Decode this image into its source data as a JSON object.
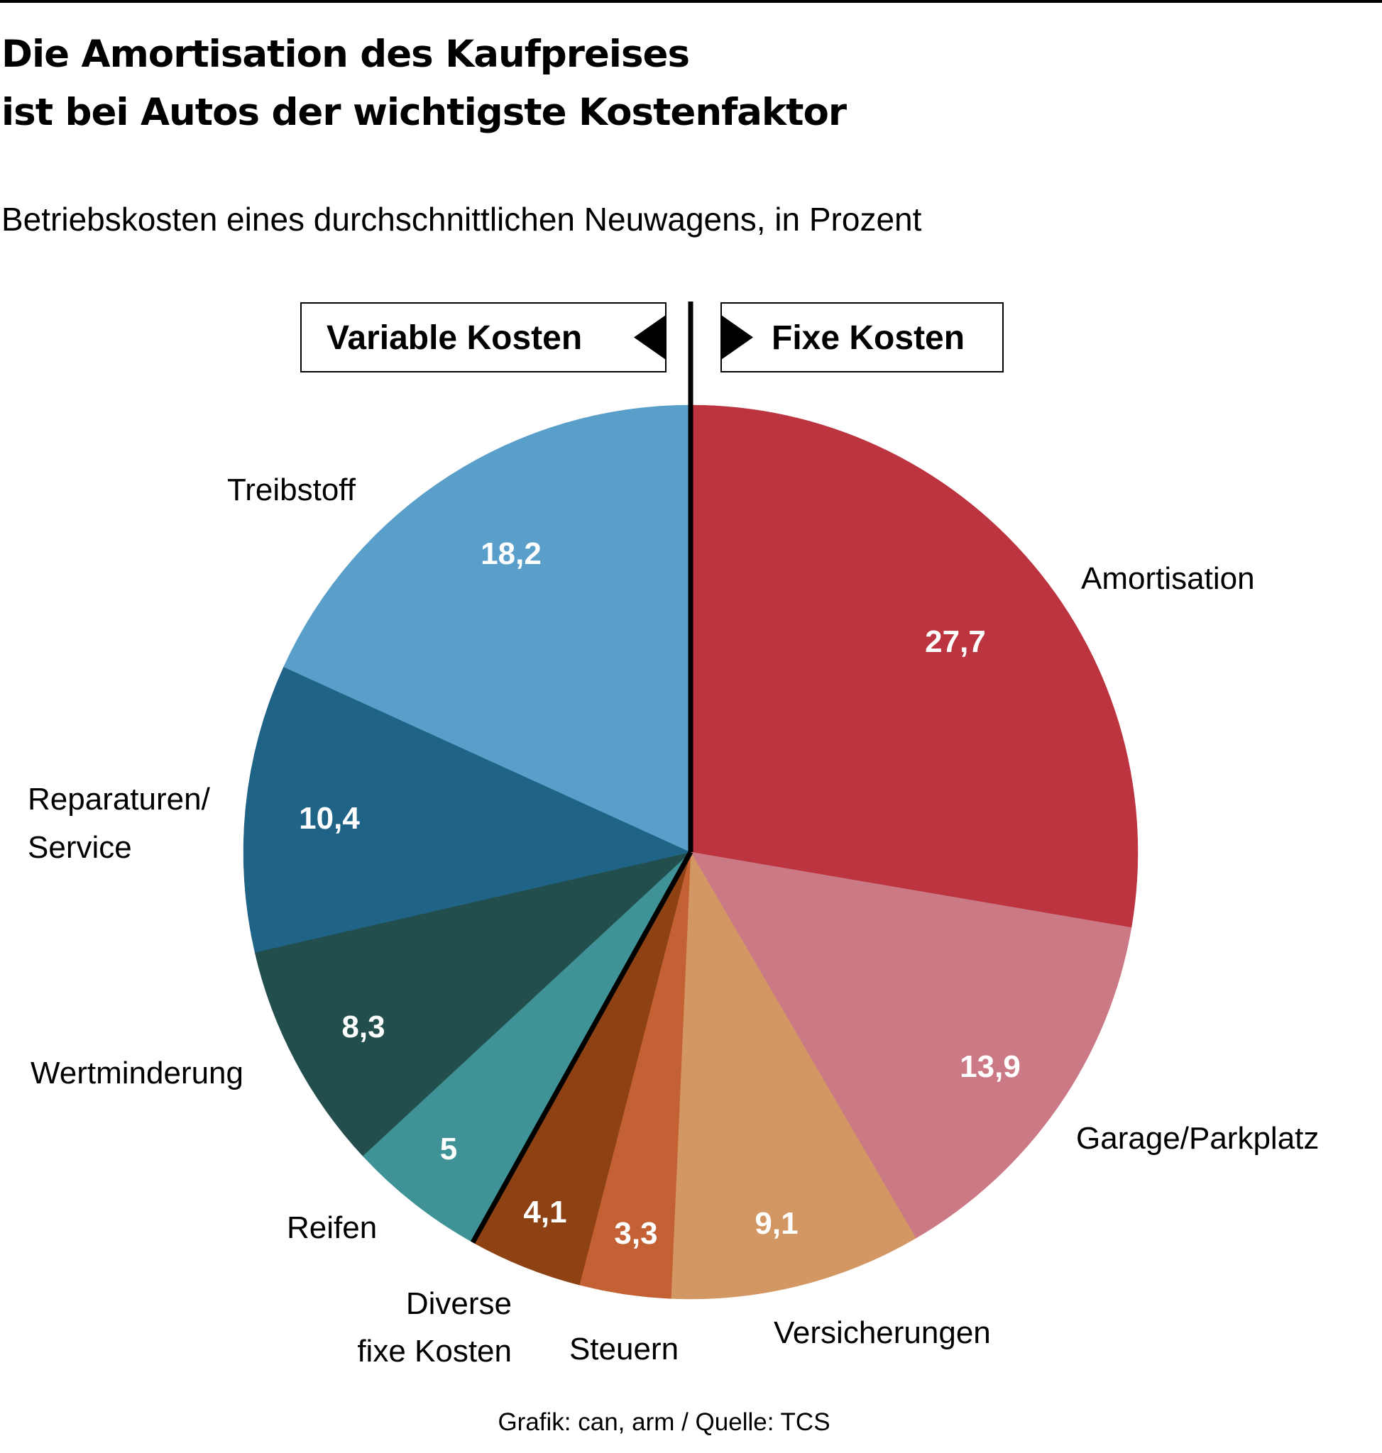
{
  "title_lines": [
    "Die Amortisation des Kaufpreises",
    "ist bei Autos der wichtigste Kostenfaktor"
  ],
  "subtitle": "Betriebskosten eines durchschnittlichen Neuwagens, in Prozent",
  "legend": {
    "variable_label": "Variable Kosten",
    "fixed_label": "Fixe Kosten"
  },
  "footer": "Grafik: can, arm / Quelle: TCS",
  "chart_data": {
    "type": "pie",
    "title": "Die Amortisation des Kaufpreises ist bei Autos der wichtigste Kostenfaktor",
    "subtitle": "Betriebskosten eines durchschnittlichen Neuwagens, in Prozent",
    "unit": "Prozent",
    "start": "top",
    "direction": "clockwise",
    "slices": [
      {
        "label": "Amortisation",
        "value": 27.7,
        "value_label": "27,7",
        "group": "Fixe Kosten",
        "color": "#BC343F"
      },
      {
        "label": "Garage/Parkplatz",
        "value": 13.9,
        "value_label": "13,9",
        "group": "Fixe Kosten",
        "color": "#CA7985"
      },
      {
        "label": "Versicherungen",
        "value": 9.1,
        "value_label": "9,1",
        "group": "Fixe Kosten",
        "color": "#D39763"
      },
      {
        "label": "Steuern",
        "value": 3.3,
        "value_label": "3,3",
        "group": "Fixe Kosten",
        "color": "#C46134"
      },
      {
        "label": "Diverse fixe Kosten",
        "label_lines": [
          "Diverse",
          "fixe Kosten"
        ],
        "value": 4.1,
        "value_label": "4,1",
        "group": "Fixe Kosten",
        "color": "#8E4214"
      },
      {
        "label": "Reifen",
        "value": 5,
        "value_label": "5",
        "group": "Variable Kosten",
        "color": "#3F9295"
      },
      {
        "label": "Wertminderung",
        "value": 8.3,
        "value_label": "8,3",
        "group": "Variable Kosten",
        "color": "#224E4D"
      },
      {
        "label": "Reparaturen/ Service",
        "label_lines": [
          "Reparaturen/",
          "Service"
        ],
        "value": 10.4,
        "value_label": "10,4",
        "group": "Variable Kosten",
        "color": "#1F6387"
      },
      {
        "label": "Treibstoff",
        "value": 18.2,
        "value_label": "18,2",
        "group": "Variable Kosten",
        "color": "#599FC9"
      }
    ],
    "groups": [
      "Variable Kosten",
      "Fixe Kosten"
    ]
  }
}
